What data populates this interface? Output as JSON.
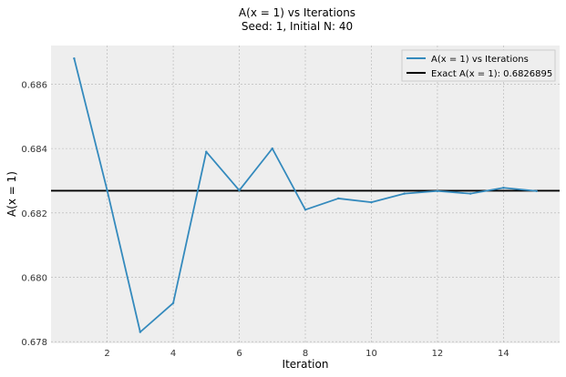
{
  "chart_data": {
    "type": "line",
    "title": "A(x = 1) vs Iterations",
    "subtitle": "Seed: 1, Initial N: 40",
    "xlabel": "Iteration",
    "ylabel": "A(x = 1)",
    "xlim": [
      0.3,
      15.7
    ],
    "ylim": [
      0.67795,
      0.6872
    ],
    "x_ticks": [
      2,
      4,
      6,
      8,
      10,
      12,
      14
    ],
    "y_ticks": [
      0.678,
      0.68,
      0.682,
      0.684,
      0.686
    ],
    "y_tick_labels": [
      "0.678",
      "0.680",
      "0.682",
      "0.684",
      "0.686"
    ],
    "grid": true,
    "legend_position": "top-right",
    "series": [
      {
        "name": "A(x = 1) vs Iterations",
        "color": "#348ABD",
        "x": [
          1,
          2,
          3,
          4,
          5,
          6,
          7,
          8,
          9,
          10,
          11,
          12,
          13,
          14,
          15
        ],
        "y": [
          0.6868,
          0.6827,
          0.6783,
          0.6792,
          0.6839,
          0.6827,
          0.684,
          0.6821,
          0.68245,
          0.68233,
          0.6826,
          0.68268,
          0.6826,
          0.68278,
          0.68268
        ]
      }
    ],
    "reference_line": {
      "name": "Exact A(x = 1): 0.6826895",
      "color": "#000000",
      "y": 0.6826895
    }
  }
}
